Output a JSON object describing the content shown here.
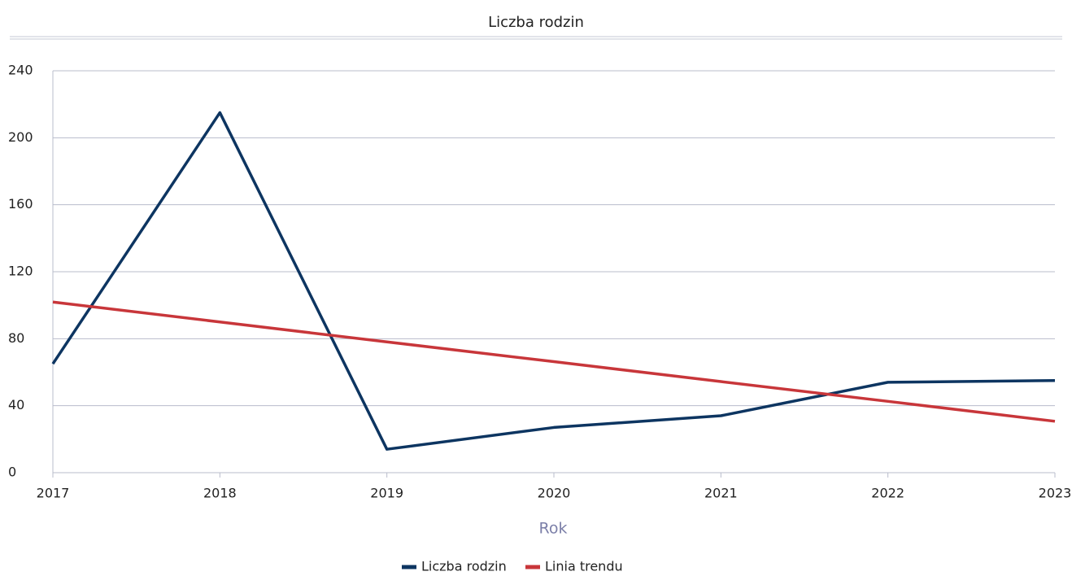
{
  "chart_data": {
    "type": "line",
    "title": "Liczba rodzin",
    "x_label": "Rok",
    "x": [
      2017,
      2018,
      2019,
      2020,
      2021,
      2022,
      2023
    ],
    "series": [
      {
        "name": "Liczba rodzin",
        "color": "#0d3561",
        "values": [
          65,
          215,
          14,
          27,
          34,
          54,
          55
        ]
      },
      {
        "name": "Linia trendu",
        "color": "#c8363a",
        "values": [
          101.9,
          90.0,
          78.1,
          66.3,
          54.4,
          42.6,
          30.7
        ]
      }
    ],
    "xlim": [
      2017,
      2023
    ],
    "xticks": [
      2017,
      2018,
      2019,
      2020,
      2021,
      2022,
      2023
    ],
    "ylim": [
      0,
      240
    ],
    "yticks": [
      0,
      40,
      80,
      120,
      160,
      200,
      240
    ],
    "grid": true,
    "legend": "bottom"
  }
}
